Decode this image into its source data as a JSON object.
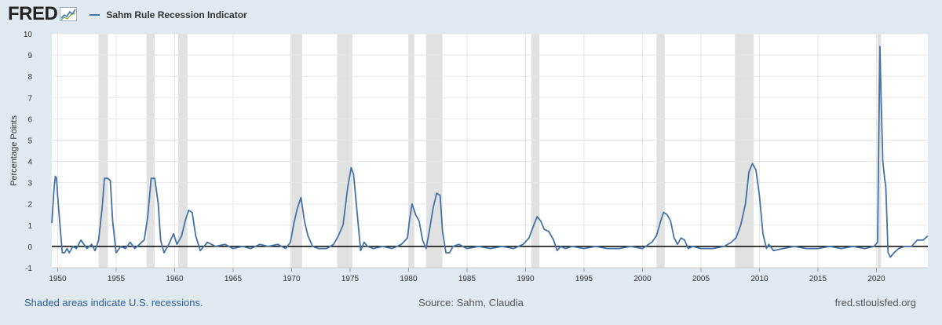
{
  "brand": {
    "logo_text": "FRED",
    "logo_icon": "fred-chart-icon"
  },
  "legend": {
    "series_name": "Sahm Rule Recession Indicator",
    "color": "#4572a7"
  },
  "colors": {
    "background": "#e1e9f0",
    "plot_background": "#ffffff",
    "recession_shading": "#e1e1e1",
    "zero_line": "#000000"
  },
  "footer": {
    "note": "Shaded areas indicate U.S. recessions.",
    "source": "Source: Sahm, Claudia",
    "site": "fred.stlouisfed.org"
  },
  "chart_data": {
    "type": "line",
    "title": "",
    "xlabel": "",
    "ylabel": "Percentage Points",
    "xlim": [
      1949.5,
      2024.4
    ],
    "ylim": [
      -1,
      10
    ],
    "y_ticks": [
      -1,
      0,
      1,
      2,
      3,
      4,
      5,
      6,
      7,
      8,
      9,
      10
    ],
    "x_ticks": [
      1950,
      1955,
      1960,
      1965,
      1970,
      1975,
      1980,
      1985,
      1990,
      1995,
      2000,
      2005,
      2010,
      2015,
      2020
    ],
    "grid": true,
    "legend_position": "top-left",
    "recessions": [
      [
        1953.5,
        1954.3
      ],
      [
        1957.6,
        1958.3
      ],
      [
        1960.3,
        1961.1
      ],
      [
        1969.9,
        1970.9
      ],
      [
        1973.9,
        1975.2
      ],
      [
        1980.0,
        1980.5
      ],
      [
        1981.5,
        1982.9
      ],
      [
        1990.5,
        1991.2
      ],
      [
        2001.2,
        2001.9
      ],
      [
        2007.9,
        2009.5
      ],
      [
        2020.1,
        2020.4
      ]
    ],
    "series": [
      {
        "name": "Sahm Rule Recession Indicator",
        "x": [
          1949.5,
          1949.7,
          1949.8,
          1949.9,
          1950.0,
          1950.2,
          1950.4,
          1950.6,
          1950.8,
          1951.0,
          1951.3,
          1951.6,
          1952.0,
          1952.5,
          1952.9,
          1953.2,
          1953.5,
          1953.8,
          1954.0,
          1954.3,
          1954.5,
          1954.7,
          1955.0,
          1955.4,
          1955.8,
          1956.2,
          1956.6,
          1957.0,
          1957.4,
          1957.7,
          1958.0,
          1958.3,
          1958.6,
          1958.8,
          1959.1,
          1959.5,
          1959.9,
          1960.2,
          1960.6,
          1960.9,
          1961.2,
          1961.5,
          1961.8,
          1962.2,
          1962.8,
          1963.5,
          1964.3,
          1965.0,
          1965.8,
          1966.5,
          1967.3,
          1968.0,
          1968.8,
          1969.5,
          1969.9,
          1970.2,
          1970.5,
          1970.8,
          1971.1,
          1971.4,
          1971.8,
          1972.3,
          1973.0,
          1973.6,
          1974.0,
          1974.4,
          1974.8,
          1975.1,
          1975.3,
          1975.6,
          1975.9,
          1976.2,
          1976.5,
          1977.0,
          1977.8,
          1978.6,
          1979.4,
          1979.9,
          1980.1,
          1980.3,
          1980.6,
          1980.9,
          1981.2,
          1981.5,
          1981.8,
          1982.1,
          1982.4,
          1982.7,
          1982.9,
          1983.2,
          1983.5,
          1983.8,
          1984.3,
          1985.0,
          1986.0,
          1987.0,
          1988.0,
          1989.0,
          1989.8,
          1990.3,
          1990.7,
          1991.0,
          1991.3,
          1991.6,
          1992.0,
          1992.4,
          1992.7,
          1993.0,
          1993.4,
          1994.0,
          1995.0,
          1996.0,
          1997.0,
          1998.0,
          1999.0,
          2000.0,
          2000.8,
          2001.2,
          2001.5,
          2001.8,
          2002.1,
          2002.4,
          2002.7,
          2003.0,
          2003.3,
          2003.6,
          2003.9,
          2004.3,
          2005.0,
          2006.0,
          2007.0,
          2007.6,
          2008.0,
          2008.4,
          2008.8,
          2009.1,
          2009.4,
          2009.7,
          2010.0,
          2010.3,
          2010.6,
          2010.8,
          2011.2,
          2012.0,
          2013.0,
          2014.0,
          2015.0,
          2016.0,
          2017.0,
          2018.0,
          2019.0,
          2019.8,
          2020.1,
          2020.2,
          2020.3,
          2020.4,
          2020.55,
          2020.7,
          2020.8,
          2021.0,
          2021.2,
          2021.5,
          2021.9,
          2022.4,
          2023.0,
          2023.5,
          2024.0,
          2024.4
        ],
        "values": [
          1.1,
          2.8,
          3.3,
          3.2,
          2.4,
          1.0,
          -0.3,
          -0.3,
          -0.1,
          -0.3,
          0.0,
          -0.1,
          0.3,
          -0.1,
          0.1,
          -0.2,
          0.3,
          1.8,
          3.2,
          3.2,
          3.1,
          1.2,
          -0.3,
          0.0,
          -0.1,
          0.2,
          -0.1,
          0.1,
          0.3,
          1.4,
          3.2,
          3.2,
          2.0,
          0.3,
          -0.3,
          0.1,
          0.6,
          0.1,
          0.5,
          1.2,
          1.7,
          1.6,
          0.5,
          -0.2,
          0.2,
          0.0,
          0.1,
          -0.1,
          0.0,
          -0.1,
          0.1,
          0.0,
          0.1,
          -0.1,
          0.2,
          1.1,
          1.8,
          2.3,
          1.2,
          0.5,
          0.0,
          -0.1,
          -0.1,
          0.1,
          0.5,
          1.0,
          2.8,
          3.7,
          3.4,
          1.6,
          -0.2,
          0.2,
          0.0,
          -0.1,
          0.0,
          -0.1,
          0.1,
          0.4,
          1.3,
          2.0,
          1.5,
          1.2,
          0.3,
          -0.1,
          0.8,
          1.8,
          2.5,
          2.4,
          0.7,
          -0.3,
          -0.3,
          0.0,
          0.1,
          -0.1,
          0.0,
          -0.1,
          0.0,
          -0.1,
          0.1,
          0.4,
          1.0,
          1.4,
          1.2,
          0.8,
          0.7,
          0.3,
          -0.2,
          0.0,
          -0.1,
          0.0,
          -0.1,
          0.0,
          -0.1,
          -0.1,
          0.0,
          -0.1,
          0.2,
          0.5,
          1.1,
          1.6,
          1.5,
          1.2,
          0.4,
          0.1,
          0.4,
          0.3,
          -0.1,
          0.0,
          -0.1,
          -0.1,
          0.0,
          0.2,
          0.4,
          1.0,
          2.0,
          3.5,
          3.9,
          3.6,
          2.4,
          0.6,
          -0.1,
          0.1,
          -0.2,
          -0.1,
          0.0,
          -0.1,
          -0.1,
          0.0,
          -0.1,
          0.0,
          -0.1,
          0.0,
          0.2,
          5.0,
          9.4,
          7.0,
          4.0,
          3.2,
          2.8,
          -0.3,
          -0.5,
          -0.3,
          -0.1,
          0.0,
          0.0,
          0.3,
          0.3,
          0.5
        ]
      }
    ]
  }
}
